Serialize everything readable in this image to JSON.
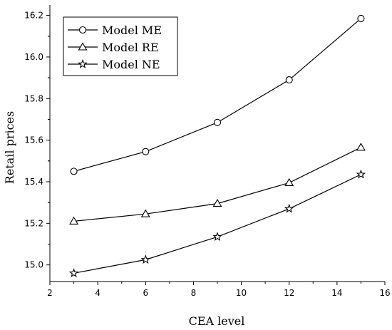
{
  "chart_data": {
    "type": "line",
    "xlabel": "CEA level",
    "ylabel": "Retail prices",
    "xlim": [
      2,
      16
    ],
    "ylim": [
      14.92,
      16.25
    ],
    "x_ticks": [
      2,
      4,
      6,
      8,
      10,
      12,
      14,
      16
    ],
    "y_ticks": [
      15.0,
      15.2,
      15.4,
      15.6,
      15.8,
      16.0,
      16.2
    ],
    "x": [
      3,
      6,
      9,
      12,
      15
    ],
    "legend_position": "top-left",
    "grid": false,
    "series": [
      {
        "name": "Model ME",
        "marker": "circle",
        "values": [
          15.45,
          15.545,
          15.685,
          15.89,
          16.185
        ]
      },
      {
        "name": "Model RE",
        "marker": "triangle",
        "values": [
          15.21,
          15.245,
          15.295,
          15.395,
          15.565
        ]
      },
      {
        "name": "Model NE",
        "marker": "star",
        "values": [
          14.96,
          15.025,
          15.135,
          15.27,
          15.435
        ]
      }
    ]
  }
}
